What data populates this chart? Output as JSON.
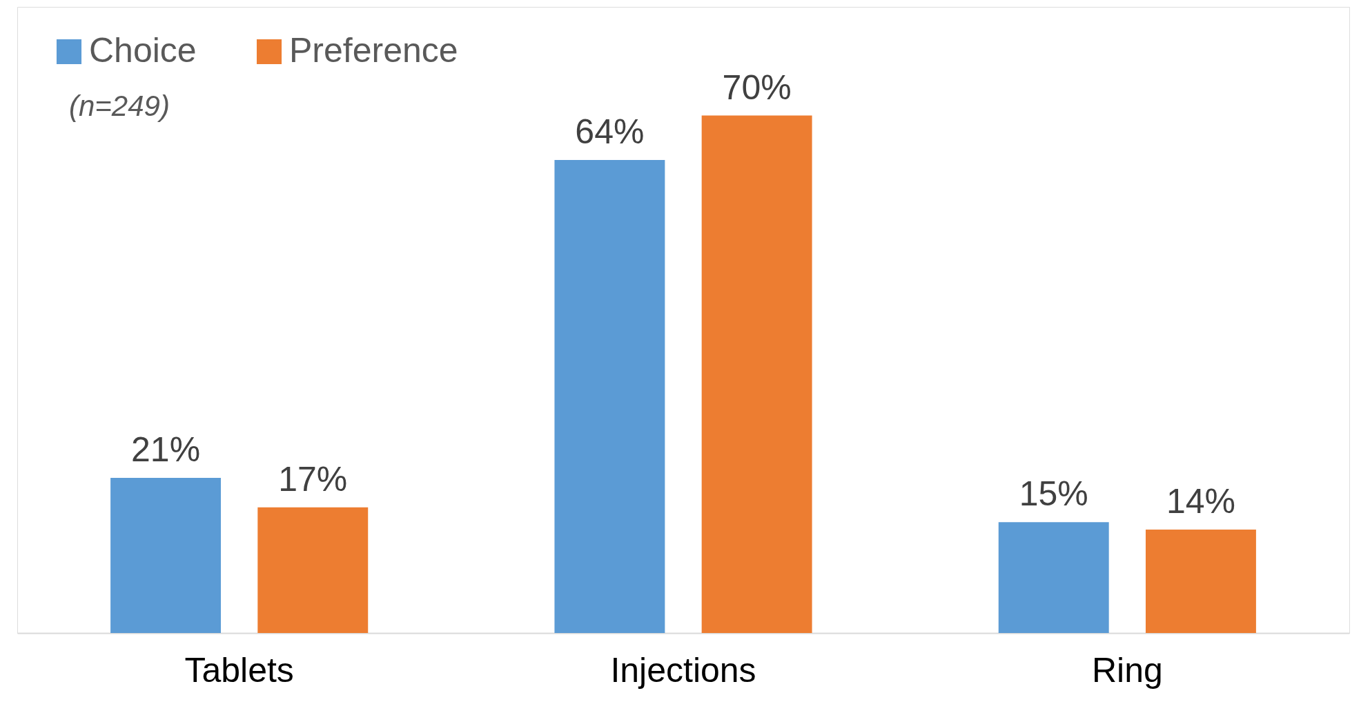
{
  "chart_data": {
    "type": "bar",
    "categories": [
      "Tablets",
      "Injections",
      "Ring"
    ],
    "series": [
      {
        "name": "Choice",
        "color": "#5b9bd5",
        "values": [
          21,
          64,
          15
        ],
        "value_labels": [
          "21%",
          "64%",
          "15%"
        ]
      },
      {
        "name": "Preference",
        "color": "#ed7d31",
        "values": [
          17,
          70,
          14
        ],
        "value_labels": [
          "17%",
          "70%",
          "14%"
        ]
      }
    ],
    "annotations": [
      "(n=249)"
    ],
    "legend": "top left"
  }
}
